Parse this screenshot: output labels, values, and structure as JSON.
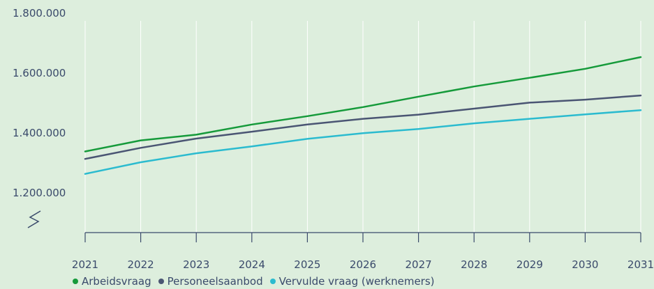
{
  "chart_data": {
    "type": "line",
    "x": [
      "2021",
      "2022",
      "2023",
      "2024",
      "2025",
      "2026",
      "2027",
      "2028",
      "2029",
      "2030",
      "2031"
    ],
    "y_ticks": [
      "1.200.000",
      "1.400.000",
      "1.600.000",
      "1.800.000"
    ],
    "y_tick_values": [
      1200000,
      1400000,
      1600000,
      1800000
    ],
    "ylim": [
      1200000,
      1800000
    ],
    "axis_break": true,
    "grid": "vertical",
    "legend_position": "bottom",
    "series": [
      {
        "name": "Arbeidsvraag",
        "color": "#159a3a",
        "values": [
          1357000,
          1394000,
          1413000,
          1447000,
          1475000,
          1505000,
          1540000,
          1574000,
          1603000,
          1633000,
          1672000
        ]
      },
      {
        "name": "Personeelsaanbod",
        "color": "#4a5573",
        "values": [
          1332000,
          1369000,
          1400000,
          1423000,
          1447000,
          1466000,
          1480000,
          1500000,
          1520000,
          1530000,
          1544000
        ]
      },
      {
        "name": "Vervulde vraag (werknemers)",
        "color": "#2bbbcf",
        "values": [
          1282000,
          1321000,
          1351000,
          1374000,
          1399000,
          1418000,
          1432000,
          1451000,
          1466000,
          1481000,
          1495000
        ]
      }
    ]
  }
}
